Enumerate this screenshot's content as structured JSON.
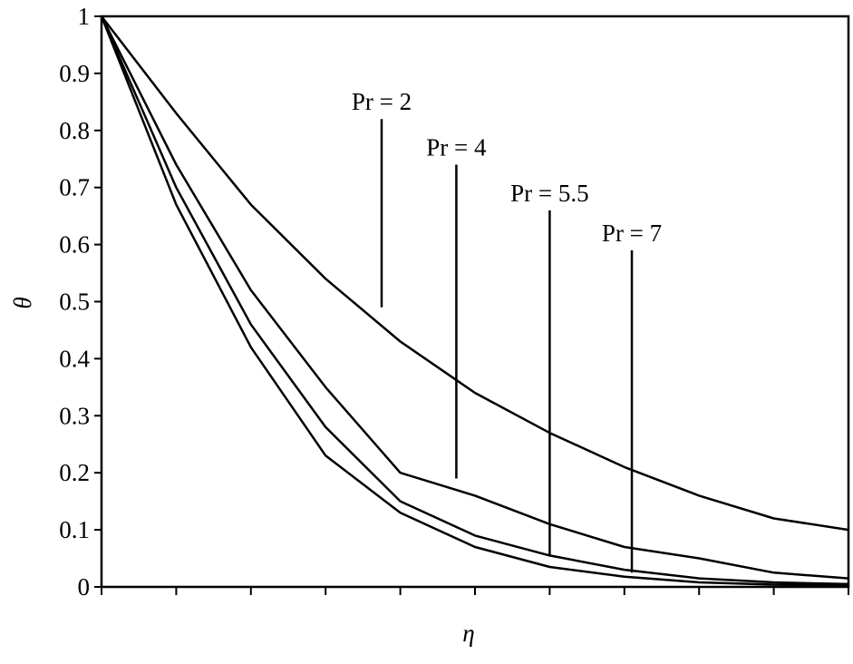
{
  "chart_data": {
    "type": "line",
    "title": "",
    "xlabel": "η",
    "ylabel": "θ",
    "ylim": [
      0,
      1
    ],
    "xlim": [
      0,
      10
    ],
    "x_tick_count": 11,
    "y_ticks": [
      "0",
      "0.1",
      "0.2",
      "0.3",
      "0.4",
      "0.5",
      "0.6",
      "0.7",
      "0.8",
      "0.9",
      "1"
    ],
    "grid": false,
    "legend": "none",
    "line_color": "#000000",
    "series": [
      {
        "x": [
          0,
          1,
          2,
          3,
          4,
          5,
          6,
          7,
          8,
          9,
          10
        ],
        "values": [
          1.0,
          0.83,
          0.67,
          0.54,
          0.43,
          0.34,
          0.27,
          0.21,
          0.16,
          0.12,
          0.1
        ]
      },
      {
        "x": [
          0,
          1,
          2,
          3,
          4,
          5,
          6,
          7,
          8,
          9,
          10
        ],
        "values": [
          1.0,
          0.74,
          0.52,
          0.35,
          0.2,
          0.16,
          0.11,
          0.07,
          0.05,
          0.025,
          0.015
        ]
      },
      {
        "x": [
          0,
          1,
          2,
          3,
          4,
          5,
          6,
          7,
          8,
          9,
          10
        ],
        "values": [
          1.0,
          0.7,
          0.46,
          0.28,
          0.15,
          0.09,
          0.055,
          0.03,
          0.015,
          0.008,
          0.005
        ]
      },
      {
        "x": [
          0,
          1,
          2,
          3,
          4,
          5,
          6,
          7,
          8,
          9,
          10
        ],
        "values": [
          1.0,
          0.67,
          0.42,
          0.23,
          0.13,
          0.07,
          0.035,
          0.018,
          0.008,
          0.004,
          0.002
        ]
      }
    ],
    "annotations": [
      {
        "text": "Pr = 2",
        "x": 3.75,
        "y_from": 0.49,
        "y_to": 0.82
      },
      {
        "text": "Pr = 4",
        "x": 4.75,
        "y_from": 0.19,
        "y_to": 0.74
      },
      {
        "text": "Pr = 5.5",
        "x": 6.0,
        "y_from": 0.055,
        "y_to": 0.66
      },
      {
        "text": "Pr = 7",
        "x": 7.1,
        "y_from": 0.025,
        "y_to": 0.59
      }
    ]
  }
}
